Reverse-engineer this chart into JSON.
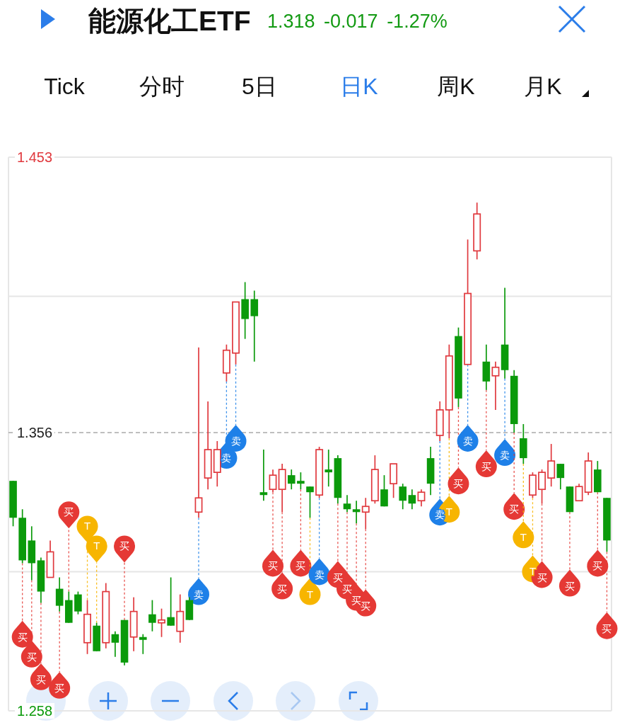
{
  "chart_data": {
    "type": "candlestick",
    "title": "能源化工ETF",
    "subtitle": "1.318 -0.017 -1.27%",
    "categories": [
      null,
      null,
      null,
      null,
      null,
      null,
      null,
      null,
      null,
      null,
      null,
      null,
      null,
      null,
      null,
      null,
      null,
      null,
      null,
      null,
      null,
      null,
      null,
      null,
      null,
      null,
      null,
      null,
      null,
      null,
      null,
      null,
      null,
      null,
      null,
      null,
      null,
      null,
      null,
      null,
      null,
      null,
      null,
      null,
      null,
      null,
      null,
      null,
      null,
      null,
      null,
      null,
      null,
      null,
      null,
      null,
      null,
      null,
      null,
      null,
      null,
      null,
      null,
      null,
      null
    ],
    "ohlc": [
      [
        1.339,
        1.339,
        1.323,
        1.326
      ],
      [
        1.326,
        1.329,
        1.31,
        1.311
      ],
      [
        1.318,
        1.323,
        1.304,
        1.31
      ],
      [
        1.311,
        1.312,
        1.296,
        1.3
      ],
      [
        1.305,
        1.318,
        1.305,
        1.314
      ],
      [
        1.301,
        1.305,
        1.293,
        1.295
      ],
      [
        1.297,
        1.3,
        1.289,
        1.289
      ],
      [
        1.299,
        1.3,
        1.292,
        1.293
      ],
      [
        1.282,
        1.297,
        1.278,
        1.292
      ],
      [
        1.288,
        1.289,
        1.279,
        1.279
      ],
      [
        1.282,
        1.303,
        1.28,
        1.3
      ],
      [
        1.285,
        1.286,
        1.277,
        1.282
      ],
      [
        1.29,
        1.29,
        1.274,
        1.275
      ],
      [
        1.284,
        1.298,
        1.279,
        1.293
      ],
      [
        1.284,
        1.285,
        1.278,
        1.283
      ],
      [
        1.292,
        1.297,
        1.286,
        1.289
      ],
      [
        1.289,
        1.294,
        1.284,
        1.29
      ],
      [
        1.291,
        1.305,
        1.288,
        1.288
      ],
      [
        1.286,
        1.299,
        1.282,
        1.293
      ],
      [
        1.297,
        1.298,
        1.29,
        1.29
      ],
      [
        1.328,
        1.386,
        1.326,
        1.333
      ],
      [
        1.34,
        1.367,
        1.336,
        1.35
      ],
      [
        1.342,
        1.353,
        1.337,
        1.35
      ],
      [
        1.377,
        1.387,
        1.374,
        1.385
      ],
      [
        1.384,
        1.402,
        1.38,
        1.402
      ],
      [
        1.403,
        1.409,
        1.389,
        1.396
      ],
      [
        1.403,
        1.406,
        1.381,
        1.397
      ],
      [
        1.335,
        1.35,
        1.332,
        1.334
      ],
      [
        1.336,
        1.343,
        1.335,
        1.341
      ],
      [
        1.336,
        1.345,
        1.328,
        1.343
      ],
      [
        1.341,
        1.343,
        1.336,
        1.338
      ],
      [
        1.339,
        1.342,
        1.336,
        1.338
      ],
      [
        1.337,
        1.337,
        1.326,
        1.335
      ],
      [
        1.334,
        1.351,
        1.333,
        1.35
      ],
      [
        1.343,
        1.35,
        1.337,
        1.342
      ],
      [
        1.347,
        1.348,
        1.331,
        1.333
      ],
      [
        1.331,
        1.334,
        1.328,
        1.329
      ],
      [
        1.329,
        1.332,
        1.324,
        1.328
      ],
      [
        1.328,
        1.333,
        1.322,
        1.33
      ],
      [
        1.332,
        1.348,
        1.331,
        1.343
      ],
      [
        1.336,
        1.341,
        1.33,
        1.33
      ],
      [
        1.338,
        1.345,
        1.333,
        1.345
      ],
      [
        1.337,
        1.338,
        1.329,
        1.332
      ],
      [
        1.334,
        1.336,
        1.329,
        1.331
      ],
      [
        1.332,
        1.336,
        1.33,
        1.335
      ],
      [
        1.347,
        1.351,
        1.334,
        1.338
      ],
      [
        1.355,
        1.367,
        1.353,
        1.364
      ],
      [
        1.364,
        1.387,
        1.354,
        1.383
      ],
      [
        1.39,
        1.393,
        1.365,
        1.368
      ],
      [
        1.38,
        1.424,
        1.38,
        1.405
      ],
      [
        1.42,
        1.437,
        1.417,
        1.433
      ],
      [
        1.381,
        1.387,
        1.371,
        1.374
      ],
      [
        1.376,
        1.381,
        1.364,
        1.379
      ],
      [
        1.387,
        1.407,
        1.375,
        1.378
      ],
      [
        1.376,
        1.378,
        1.356,
        1.359
      ],
      [
        1.354,
        1.359,
        1.345,
        1.347
      ],
      [
        1.334,
        1.342,
        1.333,
        1.341
      ],
      [
        1.336,
        1.343,
        1.331,
        1.342
      ],
      [
        1.34,
        1.352,
        1.337,
        1.346
      ],
      [
        1.345,
        1.345,
        1.336,
        1.34
      ],
      [
        1.337,
        1.337,
        1.328,
        1.328
      ],
      [
        1.332,
        1.338,
        1.332,
        1.337
      ],
      [
        1.335,
        1.349,
        1.334,
        1.346
      ],
      [
        1.343,
        1.346,
        1.335,
        1.335
      ],
      [
        1.333,
        1.333,
        1.314,
        1.318
      ]
    ],
    "series": [
      {
        "type": "scatter",
        "values": [
          null,
          1.284,
          1.277,
          1.269,
          null,
          1.266,
          1.328,
          null,
          1.323,
          1.316,
          null,
          null,
          1.316,
          null,
          null,
          null,
          null,
          null,
          null,
          null,
          1.299,
          null,
          null,
          1.347,
          1.353,
          null,
          null,
          null,
          1.309,
          1.301,
          null,
          1.309,
          1.299,
          1.306,
          null,
          1.305,
          1.301,
          1.297,
          1.295,
          null,
          null,
          null,
          null,
          null,
          null,
          null,
          1.327,
          1.328,
          1.338,
          1.353,
          null,
          1.344,
          null,
          1.348,
          1.329,
          1.319,
          1.307,
          1.305,
          null,
          null,
          1.302,
          null,
          null,
          1.309,
          1.287
        ],
        "value_labels": [
          null,
          "买",
          "买",
          "买",
          null,
          "买",
          "买",
          null,
          "T",
          "T",
          null,
          null,
          "买",
          null,
          null,
          null,
          null,
          null,
          null,
          null,
          "卖",
          null,
          null,
          "卖",
          "卖",
          null,
          null,
          null,
          "买",
          "买",
          null,
          "买",
          "T",
          "卖",
          null,
          "买",
          "买",
          "买",
          "买",
          null,
          null,
          null,
          null,
          null,
          null,
          null,
          "卖",
          "T",
          "买",
          "卖",
          null,
          "买",
          null,
          "卖",
          "买",
          "T",
          "T",
          "买",
          null,
          null,
          "买",
          null,
          null,
          "买",
          "买"
        ],
        "colors": [
          null,
          "#e53935",
          "#e53935",
          "#e53935",
          null,
          "#e53935",
          "#e53935",
          null,
          "#f7b500",
          "#f7b500",
          null,
          null,
          "#e53935",
          null,
          null,
          null,
          null,
          null,
          null,
          null,
          "#1e80e8",
          null,
          null,
          "#1e80e8",
          "#1e80e8",
          null,
          null,
          null,
          "#e53935",
          "#e53935",
          null,
          "#e53935",
          "#f7b500",
          "#1e80e8",
          null,
          "#e53935",
          "#e53935",
          "#e53935",
          "#e53935",
          null,
          null,
          null,
          null,
          null,
          null,
          null,
          "#1e80e8",
          "#f7b500",
          "#e53935",
          "#1e80e8",
          null,
          "#e53935",
          null,
          "#1e80e8",
          "#e53935",
          "#f7b500",
          "#f7b500",
          "#e53935",
          null,
          null,
          "#e53935",
          null,
          null,
          "#e53935",
          "#e53935"
        ]
      }
    ],
    "ylim": [
      1.258,
      1.453
    ],
    "yticks": [
      1.453,
      {
        "value": 1.404,
        "label": null
      },
      1.356,
      {
        "value": 1.307,
        "label": null
      },
      1.258
    ],
    "tick_labels": "y",
    "grid": "y",
    "ref_lines": [
      {
        "axis": "y",
        "value": 1.356,
        "line_style": "dashed"
      }
    ],
    "annotations": [
      "Tick",
      "分时",
      "5日",
      "日K",
      "周K",
      "月K"
    ]
  }
}
